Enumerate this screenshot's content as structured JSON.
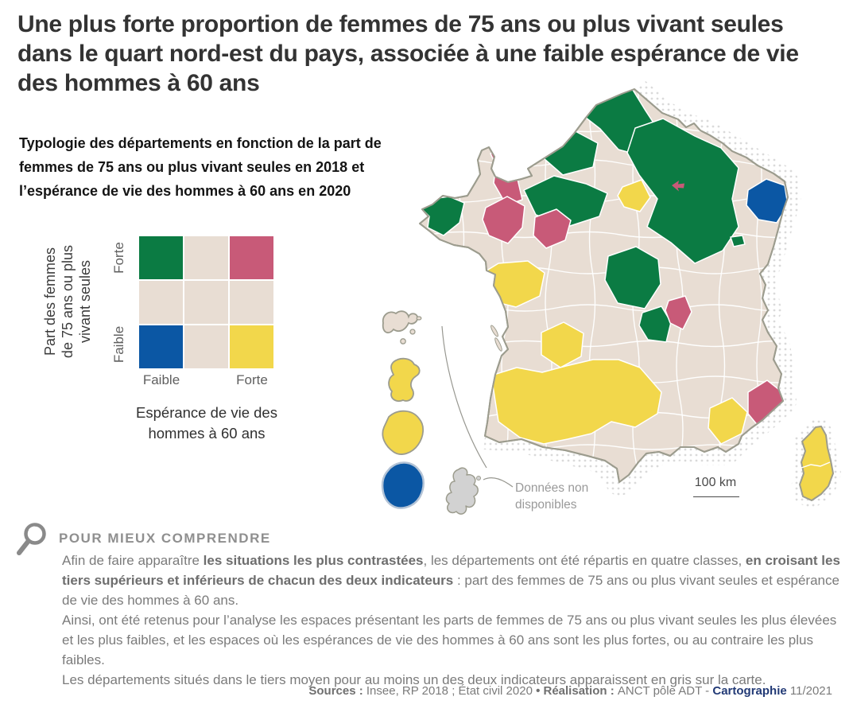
{
  "title": "Une plus forte proportion de femmes de 75 ans ou plus vivant seules dans le quart nord-est du pays, associée à une faible espérance de vie des hommes à 60 ans",
  "subtitle": "Typologie des départements en fonction de la part de femmes de 75 ans ou plus vivant seules en 2018 et l’espérance de vie des hommes à 60 ans en 2020",
  "legend": {
    "y_axis_label": "Part des femmes\nde 75 ans ou plus\nvivant seules",
    "y_tick_top": "Forte",
    "y_tick_bottom": "Faible",
    "x_tick_left": "Faible",
    "x_tick_right": "Forte",
    "x_axis_label": "Espérance de vie des\nhommes à 60 ans",
    "cells": [
      [
        "green",
        "neutral",
        "pink"
      ],
      [
        "neutral",
        "neutral",
        "neutral"
      ],
      [
        "blue",
        "neutral",
        "yellow"
      ]
    ]
  },
  "colors": {
    "green": "#0b7b43",
    "pink": "#c85a78",
    "yellow": "#f2d74b",
    "blue": "#0b57a4",
    "neutral": "#e8ddd3",
    "no_data": "#d2d2d2",
    "coast": "#9c9c8e",
    "dots": "#dadada",
    "navy": "#223a76"
  },
  "map": {
    "scale_label": "100 km",
    "no_data_annotation": "Données non\ndisponibles"
  },
  "explainer": {
    "heading": "POUR MIEUX COMPRENDRE",
    "p1": [
      {
        "t": "Afin de faire apparaître ",
        "b": false
      },
      {
        "t": "les situations les plus contrastées",
        "b": true
      },
      {
        "t": ", les départements ont été répartis en quatre classes, ",
        "b": false
      },
      {
        "t": "en croisant les tiers supérieurs et inférieurs de chacun des deux indicateurs",
        "b": true
      },
      {
        "t": " : part des femmes de 75 ans ou plus vivant seules et espérance de vie des hommes à 60 ans.",
        "b": false
      }
    ],
    "p2": "Ainsi, ont été retenus pour l’analyse les espaces présentant les parts de femmes de 75 ans ou plus vivant seules les plus élevées et les plus faibles, et les espaces où les espérances de vie des hommes à 60 ans sont les plus fortes, ou au contraire les plus faibles.",
    "p3": "Les départements situés dans le tiers moyen pour au moins un des deux indicateurs apparaissent en gris sur la carte."
  },
  "footer": {
    "segments": [
      {
        "t": "Sources : "
      },
      {
        "t": "Insee, RP 2018 ; État civil 2020 "
      },
      {
        "t": "• Réalisation : "
      },
      {
        "t": "ANCT pôle ADT - "
      },
      {
        "t": "Cartographie"
      },
      {
        "t": " 11/2021"
      }
    ]
  }
}
